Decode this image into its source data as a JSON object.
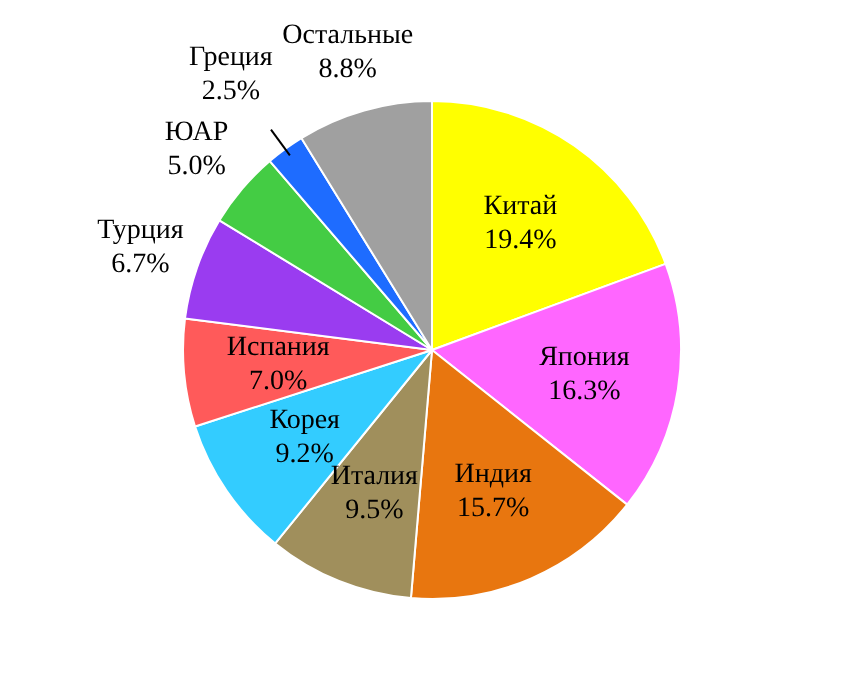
{
  "chart_data": {
    "type": "pie",
    "categories": [
      "Китай",
      "Япония",
      "Индия",
      "Италия",
      "Корея",
      "Испания",
      "Турция",
      "ЮАР",
      "Греция",
      "Остальные"
    ],
    "values": [
      19.4,
      16.3,
      15.7,
      9.5,
      9.2,
      7.0,
      6.7,
      5.0,
      2.5,
      8.8
    ],
    "colors": [
      "#ffff00",
      "#ff66ff",
      "#e8760f",
      "#a08f5c",
      "#33ccff",
      "#ff5a5a",
      "#9a3cf0",
      "#44cc44",
      "#1e6cff",
      "#a0a0a0"
    ],
    "value_labels": [
      "19.4%",
      "16.3%",
      "15.7%",
      "9.5%",
      "9.2%",
      "7.0%",
      "6.7%",
      "5.0%",
      "2.5%",
      "8.8%"
    ],
    "legend": false
  }
}
